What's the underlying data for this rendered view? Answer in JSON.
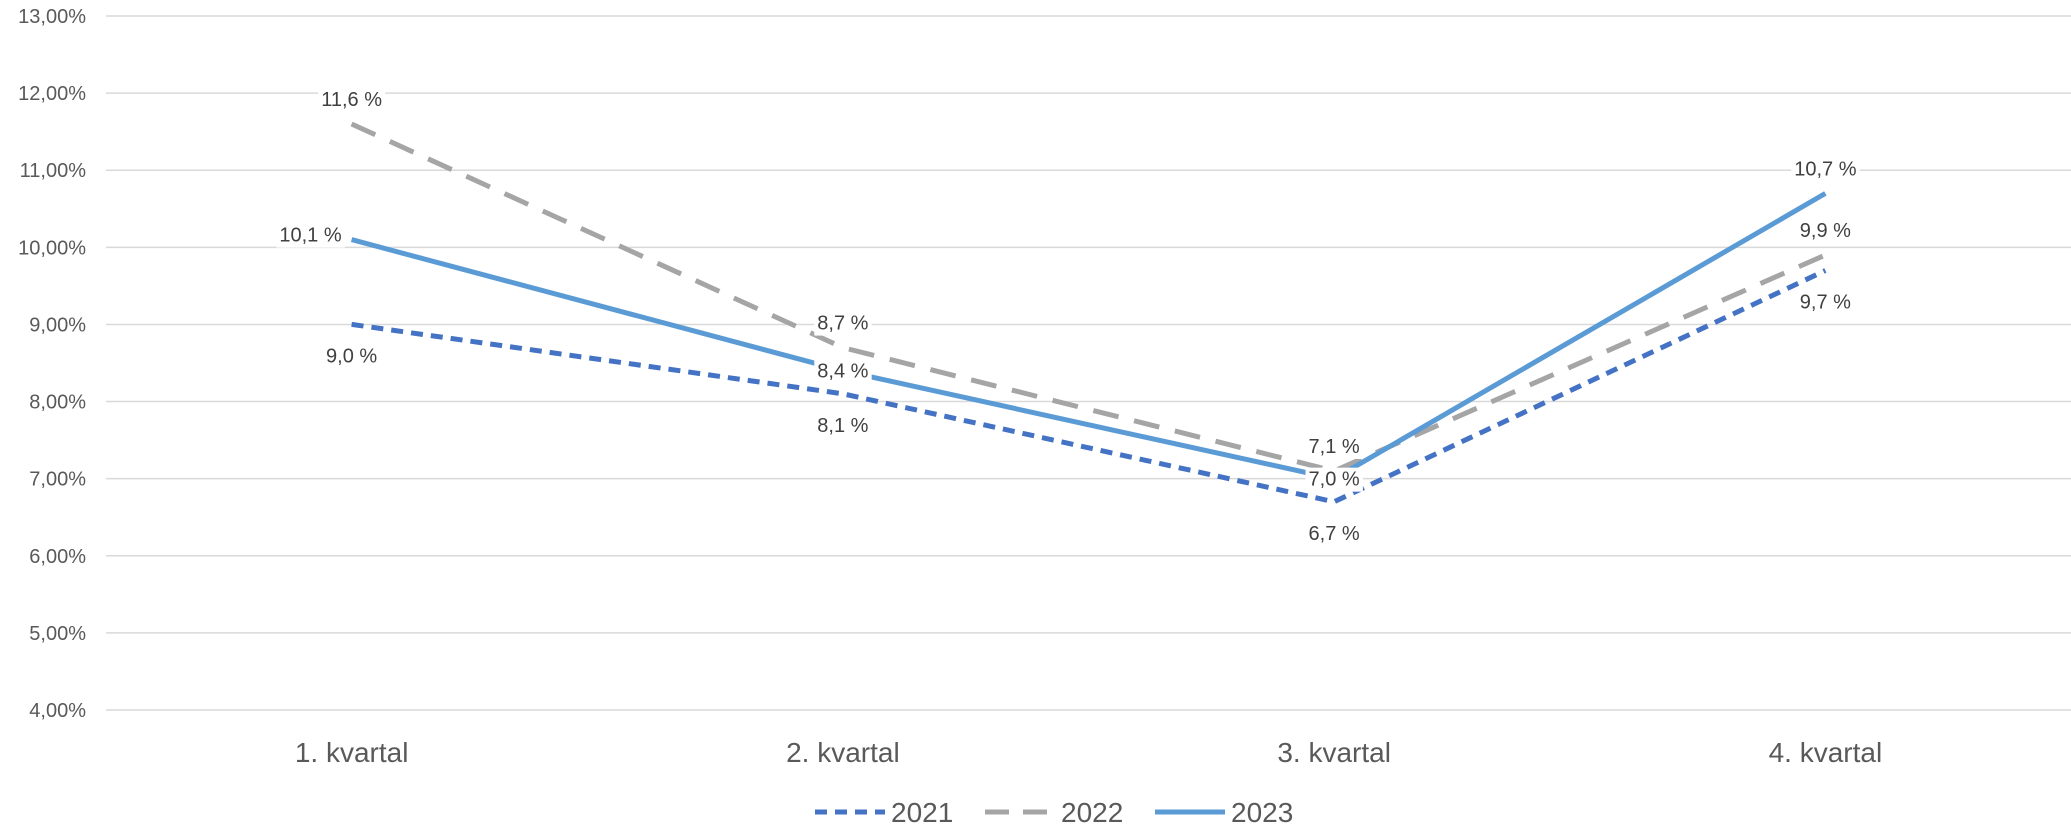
{
  "chart_data": {
    "type": "line",
    "categories": [
      "1. kvartal",
      "2. kvartal",
      "3. kvartal",
      "4. kvartal"
    ],
    "ylim": [
      0.04,
      0.13
    ],
    "ytick_labels": [
      "4,00%",
      "5,00%",
      "6,00%",
      "7,00%",
      "8,00%",
      "9,00%",
      "10,00%",
      "11,00%",
      "12,00%",
      "13,00%"
    ],
    "yticks": [
      0.04,
      0.05,
      0.06,
      0.07,
      0.08,
      0.09,
      0.1,
      0.11,
      0.12,
      0.13
    ],
    "grid": true,
    "legend_position": "bottom",
    "series": [
      {
        "name": "2021",
        "color": "#4472C4",
        "style": "dotted",
        "values": [
          0.09,
          0.081,
          0.067,
          0.097
        ],
        "labels": [
          "9,0 %",
          "8,1 %",
          "6,7 %",
          "9,7 %"
        ],
        "label_pos": [
          "below",
          "below",
          "below",
          "below"
        ]
      },
      {
        "name": "2022",
        "color": "#A5A5A5",
        "style": "dashed",
        "values": [
          0.116,
          0.087,
          0.071,
          0.099
        ],
        "labels": [
          "11,6 %",
          "8,7 %",
          "7,1 %",
          "9,9 %"
        ],
        "label_pos": [
          "above",
          "above",
          "above",
          "above"
        ]
      },
      {
        "name": "2023",
        "color": "#5B9BD5",
        "style": "solid",
        "values": [
          0.101,
          0.084,
          0.07,
          0.107
        ],
        "labels": [
          "10,1 %",
          "8,4 %",
          "7,0 %",
          "10,7 %"
        ],
        "label_pos": [
          "left",
          "center",
          "center",
          "above"
        ]
      }
    ]
  }
}
